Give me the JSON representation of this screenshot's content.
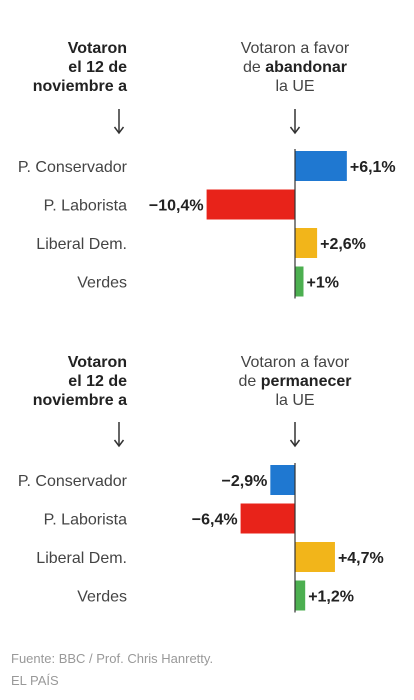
{
  "panels": [
    {
      "left_header": [
        "Votaron",
        "el 12 de",
        "noviembre a"
      ],
      "right_header": {
        "line1": "Votaron a favor",
        "prefix": "de ",
        "bold": "abandonar",
        "line3": "la UE"
      }
    },
    {
      "left_header": [
        "Votaron",
        "el 12 de",
        "noviembre a"
      ],
      "right_header": {
        "line1": "Votaron a favor",
        "prefix": "de ",
        "bold": "permanecer",
        "line3": "la UE"
      }
    }
  ],
  "chart_data": [
    {
      "type": "bar",
      "orientation": "horizontal",
      "categories": [
        "P. Conservador",
        "P. Laborista",
        "Liberal Dem.",
        "Verdes"
      ],
      "values": [
        6.1,
        -10.4,
        2.6,
        1.0
      ],
      "value_labels": [
        "+6,1%",
        "−10,4%",
        "+2,6%",
        "+1%"
      ],
      "colors": [
        "#1f78d1",
        "#e8231a",
        "#f2b51a",
        "#4caf50"
      ]
    },
    {
      "type": "bar",
      "orientation": "horizontal",
      "categories": [
        "P. Conservador",
        "P. Laborista",
        "Liberal Dem.",
        "Verdes"
      ],
      "values": [
        -2.9,
        -6.4,
        4.7,
        1.2
      ],
      "value_labels": [
        "−2,9%",
        "−6,4%",
        "+4,7%",
        "+1,2%"
      ],
      "colors": [
        "#1f78d1",
        "#e8231a",
        "#f2b51a",
        "#4caf50"
      ]
    }
  ],
  "footer": {
    "source": "Fuente: BBC / Prof. Chris Hanretty.",
    "brand": "EL PAÍS"
  }
}
